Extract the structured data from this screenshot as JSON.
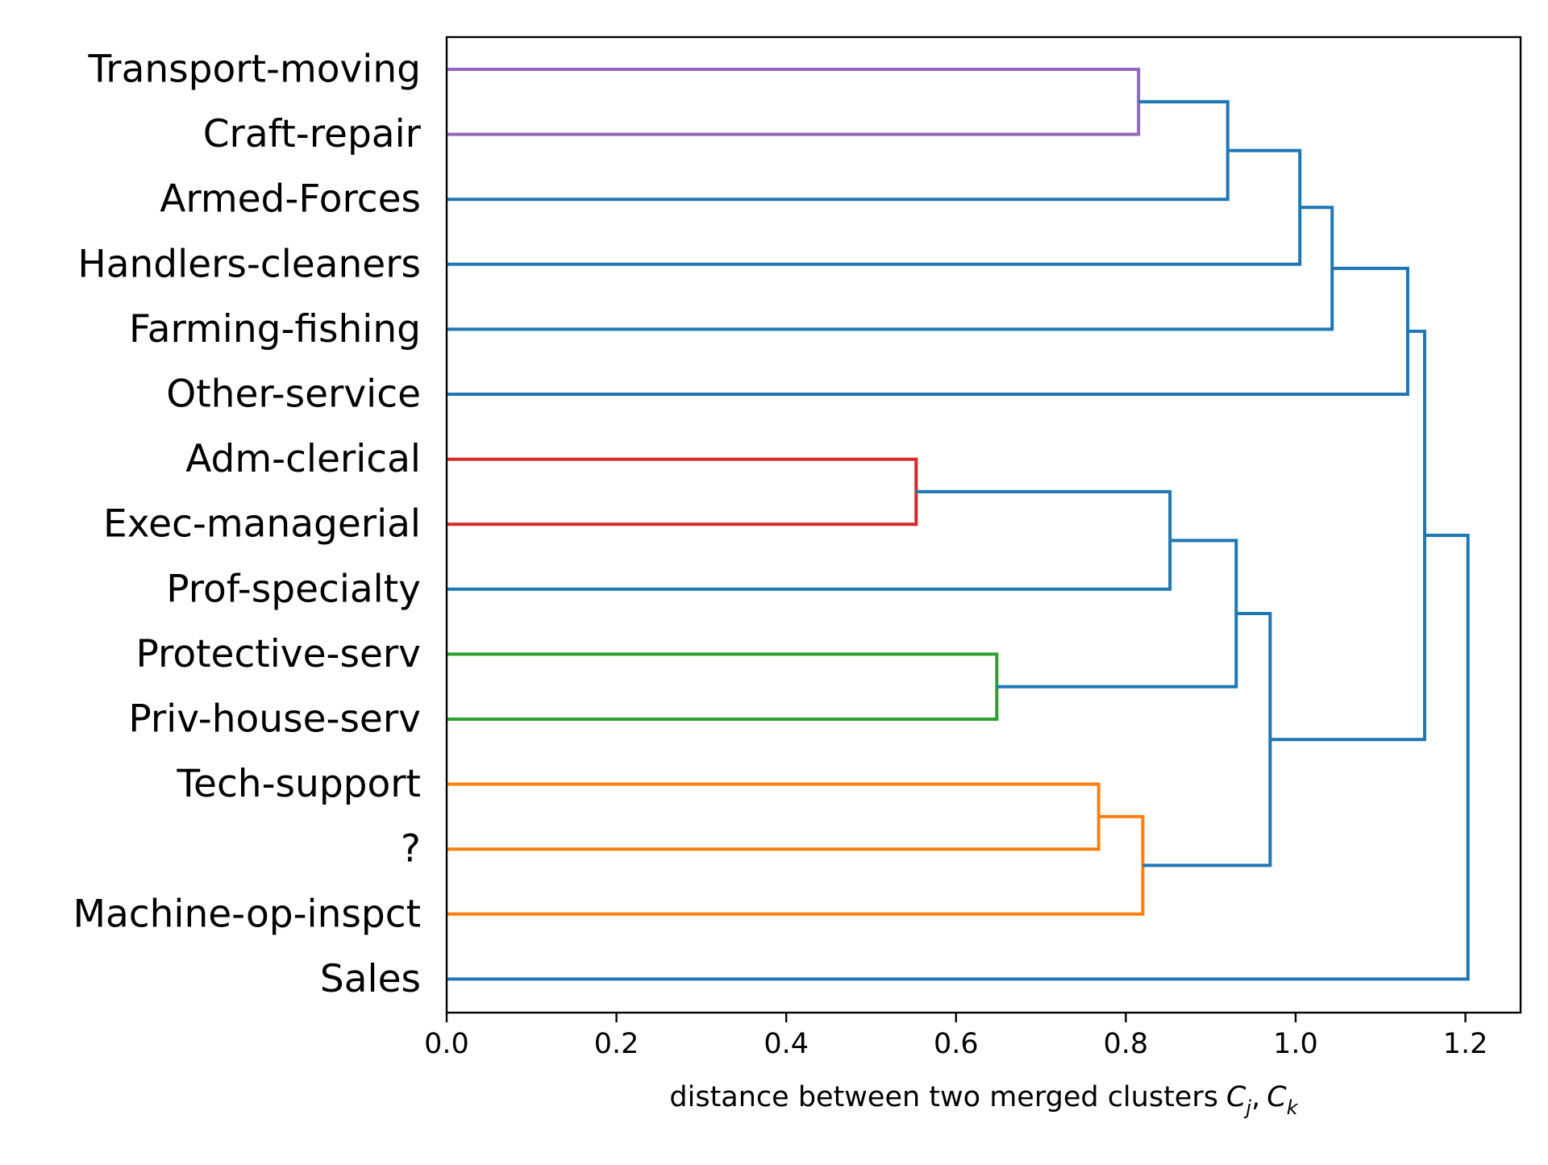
{
  "chart_data": {
    "type": "dendrogram",
    "orientation": "horizontal",
    "title": "",
    "xlabel": "distance between two merged clusters",
    "xlabel_math": {
      "C": "C",
      "j": "j",
      "sep": ",",
      "k": "k"
    },
    "ylabel": "",
    "xlim": [
      0,
      1.265
    ],
    "xticks": [
      0.0,
      0.2,
      0.4,
      0.6,
      0.8,
      1.0,
      1.2
    ],
    "xtick_labels": [
      "0.0",
      "0.2",
      "0.4",
      "0.6",
      "0.8",
      "1.0",
      "1.2"
    ],
    "grid": false,
    "leaves": [
      "Transport-moving",
      "Craft-repair",
      "Armed-Forces",
      "Handlers-cleaners",
      "Farming-fishing",
      "Other-service",
      "Adm-clerical",
      "Exec-managerial",
      "Prof-specialty",
      "Protective-serv",
      "Priv-house-serv",
      "Tech-support",
      "?",
      "Machine-op-inspct",
      "Sales"
    ],
    "merges": [
      {
        "left": "Transport-moving",
        "right": "Craft-repair",
        "id": "m1",
        "distance": 0.815,
        "color": "#9467bd"
      },
      {
        "left": "m1",
        "right": "Armed-Forces",
        "id": "m2",
        "distance": 0.92,
        "color": "#1f77b4"
      },
      {
        "left": "m2",
        "right": "Handlers-cleaners",
        "id": "m3",
        "distance": 1.005,
        "color": "#1f77b4"
      },
      {
        "left": "m3",
        "right": "Farming-fishing",
        "id": "m4",
        "distance": 1.043,
        "color": "#1f77b4"
      },
      {
        "left": "m4",
        "right": "Other-service",
        "id": "m5",
        "distance": 1.132,
        "color": "#1f77b4"
      },
      {
        "left": "Adm-clerical",
        "right": "Exec-managerial",
        "id": "m6",
        "distance": 0.553,
        "color": "#d62728"
      },
      {
        "left": "m6",
        "right": "Prof-specialty",
        "id": "m7",
        "distance": 0.852,
        "color": "#1f77b4"
      },
      {
        "left": "Protective-serv",
        "right": "Priv-house-serv",
        "id": "m8",
        "distance": 0.648,
        "color": "#2ca02c"
      },
      {
        "left": "m7",
        "right": "m8",
        "id": "m9",
        "distance": 0.93,
        "color": "#1f77b4"
      },
      {
        "left": "Tech-support",
        "right": "?",
        "id": "m10",
        "distance": 0.768,
        "color": "#ff7f0e"
      },
      {
        "left": "m10",
        "right": "Machine-op-inspct",
        "id": "m11",
        "distance": 0.82,
        "color": "#ff7f0e"
      },
      {
        "left": "m9",
        "right": "m11",
        "id": "m12",
        "distance": 0.97,
        "color": "#1f77b4"
      },
      {
        "left": "m5",
        "right": "m12",
        "id": "m13",
        "distance": 1.152,
        "color": "#1f77b4"
      },
      {
        "left": "m13",
        "right": "Sales",
        "id": "m14",
        "distance": 1.203,
        "color": "#1f77b4"
      }
    ],
    "colors": {
      "above_threshold": "#1f77b4",
      "cluster_purple": "#9467bd",
      "cluster_red": "#d62728",
      "cluster_green": "#2ca02c",
      "cluster_orange": "#ff7f0e"
    }
  }
}
